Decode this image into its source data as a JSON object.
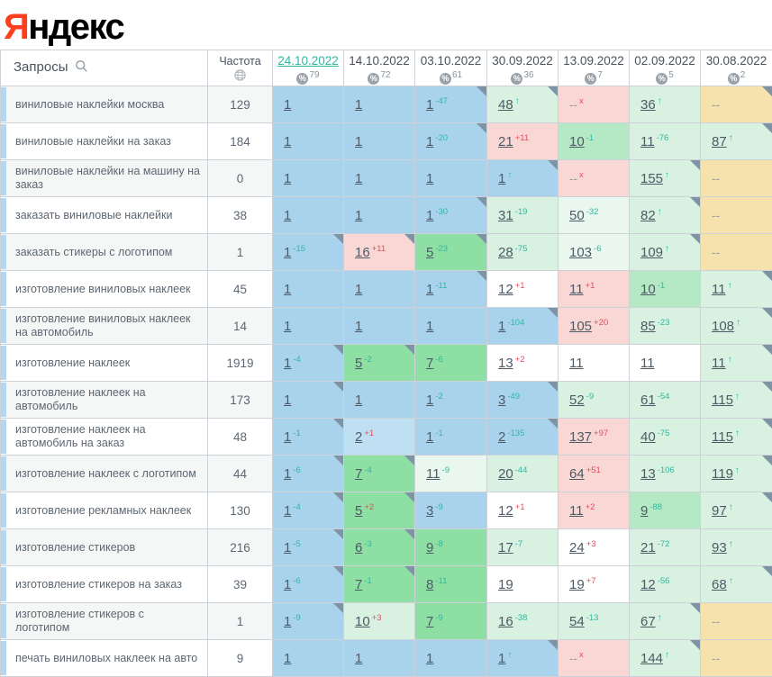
{
  "logo": {
    "ya": "Я",
    "rest": "ндекс"
  },
  "header": {
    "queries_label": "Запросы",
    "frequency_label": "Частота",
    "dates": [
      {
        "label": "24.10.2022",
        "coverage": "79",
        "active": true
      },
      {
        "label": "14.10.2022",
        "coverage": "72",
        "active": false
      },
      {
        "label": "03.10.2022",
        "coverage": "61",
        "active": false
      },
      {
        "label": "30.09.2022",
        "coverage": "36",
        "active": false
      },
      {
        "label": "13.09.2022",
        "coverage": "7",
        "active": false
      },
      {
        "label": "02.09.2022",
        "coverage": "5",
        "active": false
      },
      {
        "label": "30.08.2022",
        "coverage": "2",
        "active": false
      }
    ]
  },
  "colors": {
    "logoRed": "#fc3f1d",
    "teal": "#2eb8a0",
    "red": "#e04f5f",
    "blue": "#a9d3ec",
    "blueLight": "#bfe0f3",
    "green": "#8ddfa3",
    "greenMed": "#b5e9c5",
    "greenLight": "#d8f1e1",
    "greenPale": "#eaf7ef",
    "pink": "#f8d7d5",
    "yellow": "#f5e2ad",
    "strip": "#b4d7ef",
    "marker": "#7e93a3"
  },
  "rows": [
    {
      "query": "виниловые наклейки москва",
      "frequency": "129",
      "cells": [
        {
          "value": "1",
          "bg": "blue"
        },
        {
          "value": "1",
          "bg": "blue"
        },
        {
          "value": "1",
          "sup": "-47",
          "bg": "blue",
          "marker": true
        },
        {
          "value": "48",
          "arrow": true,
          "bg": "greenLight",
          "marker": true
        },
        {
          "value": "--",
          "sup": "x",
          "bg": "pink"
        },
        {
          "value": "36",
          "arrow": true,
          "bg": "greenLight"
        },
        {
          "value": "--",
          "bg": "yellow",
          "marker": true
        }
      ]
    },
    {
      "query": "виниловые наклейки на заказ",
      "frequency": "184",
      "cells": [
        {
          "value": "1",
          "bg": "blue"
        },
        {
          "value": "1",
          "bg": "blue"
        },
        {
          "value": "1",
          "sup": "-20",
          "bg": "blue",
          "marker": true
        },
        {
          "value": "21",
          "sup": "+11",
          "bg": "pink"
        },
        {
          "value": "10",
          "sup": "-1",
          "bg": "greenMed"
        },
        {
          "value": "11",
          "sup": "-76",
          "bg": "greenLight"
        },
        {
          "value": "87",
          "arrow": true,
          "bg": "greenLight",
          "marker": true
        }
      ]
    },
    {
      "query": "виниловые наклейки на машину на заказ",
      "frequency": "0",
      "cells": [
        {
          "value": "1",
          "bg": "blue"
        },
        {
          "value": "1",
          "bg": "blue"
        },
        {
          "value": "1",
          "bg": "blue"
        },
        {
          "value": "1",
          "arrow": true,
          "bg": "blue",
          "marker": true
        },
        {
          "value": "--",
          "sup": "x",
          "bg": "pink"
        },
        {
          "value": "155",
          "arrow": true,
          "bg": "greenLight",
          "marker": true
        },
        {
          "value": "--",
          "bg": "yellow"
        }
      ]
    },
    {
      "query": "заказать виниловые наклейки",
      "frequency": "38",
      "cells": [
        {
          "value": "1",
          "bg": "blue"
        },
        {
          "value": "1",
          "bg": "blue"
        },
        {
          "value": "1",
          "sup": "-30",
          "bg": "blue",
          "marker": true
        },
        {
          "value": "31",
          "sup": "-19",
          "bg": "greenLight"
        },
        {
          "value": "50",
          "sup": "-32",
          "bg": "greenPale"
        },
        {
          "value": "82",
          "arrow": true,
          "bg": "greenLight",
          "marker": true
        },
        {
          "value": "--",
          "bg": "yellow"
        }
      ]
    },
    {
      "query": "заказать стикеры с логотипом",
      "frequency": "1",
      "cells": [
        {
          "value": "1",
          "sup": "-15",
          "bg": "blue",
          "marker": true
        },
        {
          "value": "16",
          "sup": "+11",
          "bg": "pink",
          "marker": true
        },
        {
          "value": "5",
          "sup": "-23",
          "bg": "green",
          "marker": true
        },
        {
          "value": "28",
          "sup": "-75",
          "bg": "greenLight"
        },
        {
          "value": "103",
          "sup": "-6",
          "bg": "greenPale"
        },
        {
          "value": "109",
          "arrow": true,
          "bg": "greenLight",
          "marker": true
        },
        {
          "value": "--",
          "bg": "yellow"
        }
      ]
    },
    {
      "query": "изготовление виниловых наклеек",
      "frequency": "45",
      "cells": [
        {
          "value": "1",
          "bg": "blue"
        },
        {
          "value": "1",
          "bg": "blue"
        },
        {
          "value": "1",
          "sup": "-11",
          "bg": "blue",
          "marker": true
        },
        {
          "value": "12",
          "sup": "+1",
          "bg": "white"
        },
        {
          "value": "11",
          "sup": "+1",
          "bg": "pink"
        },
        {
          "value": "10",
          "sup": "-1",
          "bg": "greenMed"
        },
        {
          "value": "11",
          "arrow": true,
          "bg": "greenLight",
          "marker": true
        }
      ]
    },
    {
      "query": "изготовление виниловых наклеек на автомобиль",
      "frequency": "14",
      "cells": [
        {
          "value": "1",
          "bg": "blue"
        },
        {
          "value": "1",
          "bg": "blue"
        },
        {
          "value": "1",
          "bg": "blue"
        },
        {
          "value": "1",
          "sup": "-104",
          "bg": "blue",
          "marker": true
        },
        {
          "value": "105",
          "sup": "+20",
          "bg": "pink"
        },
        {
          "value": "85",
          "sup": "-23",
          "bg": "greenLight"
        },
        {
          "value": "108",
          "arrow": true,
          "bg": "greenLight",
          "marker": true
        }
      ]
    },
    {
      "query": "изготовление наклеек",
      "frequency": "1919",
      "cells": [
        {
          "value": "1",
          "sup": "-4",
          "bg": "blue",
          "marker": true
        },
        {
          "value": "5",
          "sup": "-2",
          "bg": "green",
          "marker": true
        },
        {
          "value": "7",
          "sup": "-6",
          "bg": "green"
        },
        {
          "value": "13",
          "sup": "+2",
          "bg": "white"
        },
        {
          "value": "11",
          "bg": "white"
        },
        {
          "value": "11",
          "bg": "white"
        },
        {
          "value": "11",
          "arrow": true,
          "bg": "greenLight",
          "marker": true
        }
      ]
    },
    {
      "query": "изготовление наклеек на автомобиль",
      "frequency": "173",
      "cells": [
        {
          "value": "1",
          "bg": "blue",
          "marker": true
        },
        {
          "value": "1",
          "bg": "blue"
        },
        {
          "value": "1",
          "sup": "-2",
          "bg": "blue"
        },
        {
          "value": "3",
          "sup": "-49",
          "bg": "blue",
          "marker": true
        },
        {
          "value": "52",
          "sup": "-9",
          "bg": "greenLight"
        },
        {
          "value": "61",
          "sup": "-54",
          "bg": "greenLight"
        },
        {
          "value": "115",
          "arrow": true,
          "bg": "greenLight",
          "marker": true
        }
      ]
    },
    {
      "query": "изготовление наклеек на автомобиль на заказ",
      "frequency": "48",
      "cells": [
        {
          "value": "1",
          "sup": "-1",
          "bg": "blue",
          "marker": true
        },
        {
          "value": "2",
          "sup": "+1",
          "bg": "blueLight"
        },
        {
          "value": "1",
          "sup": "-1",
          "bg": "blue"
        },
        {
          "value": "2",
          "sup": "-135",
          "bg": "blue",
          "marker": true
        },
        {
          "value": "137",
          "sup": "+97",
          "bg": "pink"
        },
        {
          "value": "40",
          "sup": "-75",
          "bg": "greenLight"
        },
        {
          "value": "115",
          "arrow": true,
          "bg": "greenLight",
          "marker": true
        }
      ]
    },
    {
      "query": "изготовление наклеек с логотипом",
      "frequency": "44",
      "cells": [
        {
          "value": "1",
          "sup": "-6",
          "bg": "blue",
          "marker": true
        },
        {
          "value": "7",
          "sup": "-4",
          "bg": "green",
          "marker": true
        },
        {
          "value": "11",
          "sup": "-9",
          "bg": "greenPale"
        },
        {
          "value": "20",
          "sup": "-44",
          "bg": "greenLight"
        },
        {
          "value": "64",
          "sup": "+51",
          "bg": "pink"
        },
        {
          "value": "13",
          "sup": "-106",
          "bg": "greenLight"
        },
        {
          "value": "119",
          "arrow": true,
          "bg": "greenLight",
          "marker": true
        }
      ]
    },
    {
      "query": "изготовление рекламных наклеек",
      "frequency": "130",
      "cells": [
        {
          "value": "1",
          "sup": "-4",
          "bg": "blue",
          "marker": true
        },
        {
          "value": "5",
          "sup": "+2",
          "bg": "green",
          "marker": true
        },
        {
          "value": "3",
          "sup": "-9",
          "bg": "blue"
        },
        {
          "value": "12",
          "sup": "+1",
          "bg": "white"
        },
        {
          "value": "11",
          "sup": "+2",
          "bg": "pink"
        },
        {
          "value": "9",
          "sup": "-88",
          "bg": "greenMed"
        },
        {
          "value": "97",
          "arrow": true,
          "bg": "greenLight",
          "marker": true
        }
      ]
    },
    {
      "query": "изготовление стикеров",
      "frequency": "216",
      "cells": [
        {
          "value": "1",
          "sup": "-5",
          "bg": "blue",
          "marker": true
        },
        {
          "value": "6",
          "sup": "-3",
          "bg": "green",
          "marker": true
        },
        {
          "value": "9",
          "sup": "-8",
          "bg": "green"
        },
        {
          "value": "17",
          "sup": "-7",
          "bg": "greenLight"
        },
        {
          "value": "24",
          "sup": "+3",
          "bg": "white"
        },
        {
          "value": "21",
          "sup": "-72",
          "bg": "greenLight"
        },
        {
          "value": "93",
          "arrow": true,
          "bg": "greenLight"
        }
      ]
    },
    {
      "query": "изготовление стикеров на заказ",
      "frequency": "39",
      "cells": [
        {
          "value": "1",
          "sup": "-6",
          "bg": "blue",
          "marker": true
        },
        {
          "value": "7",
          "sup": "-1",
          "bg": "green",
          "marker": true
        },
        {
          "value": "8",
          "sup": "-11",
          "bg": "green"
        },
        {
          "value": "19",
          "bg": "white"
        },
        {
          "value": "19",
          "sup": "+7",
          "bg": "white"
        },
        {
          "value": "12",
          "sup": "-56",
          "bg": "greenLight"
        },
        {
          "value": "68",
          "arrow": true,
          "bg": "greenLight",
          "marker": true
        }
      ]
    },
    {
      "query": "изготовление стикеров с логотипом",
      "frequency": "1",
      "cells": [
        {
          "value": "1",
          "sup": "-9",
          "bg": "blue",
          "marker": true
        },
        {
          "value": "10",
          "sup": "+3",
          "bg": "greenLight"
        },
        {
          "value": "7",
          "sup": "-9",
          "bg": "green"
        },
        {
          "value": "16",
          "sup": "-38",
          "bg": "greenLight"
        },
        {
          "value": "54",
          "sup": "-13",
          "bg": "greenLight"
        },
        {
          "value": "67",
          "arrow": true,
          "bg": "greenLight",
          "marker": true
        },
        {
          "value": "--",
          "bg": "yellow"
        }
      ]
    },
    {
      "query": "печать виниловых наклеек на авто",
      "frequency": "9",
      "cells": [
        {
          "value": "1",
          "bg": "blue"
        },
        {
          "value": "1",
          "bg": "blue"
        },
        {
          "value": "1",
          "bg": "blue"
        },
        {
          "value": "1",
          "arrow": true,
          "bg": "blue",
          "marker": true
        },
        {
          "value": "--",
          "sup": "x",
          "bg": "pink"
        },
        {
          "value": "144",
          "arrow": true,
          "bg": "greenLight",
          "marker": true
        },
        {
          "value": "--",
          "bg": "yellow"
        }
      ]
    }
  ]
}
